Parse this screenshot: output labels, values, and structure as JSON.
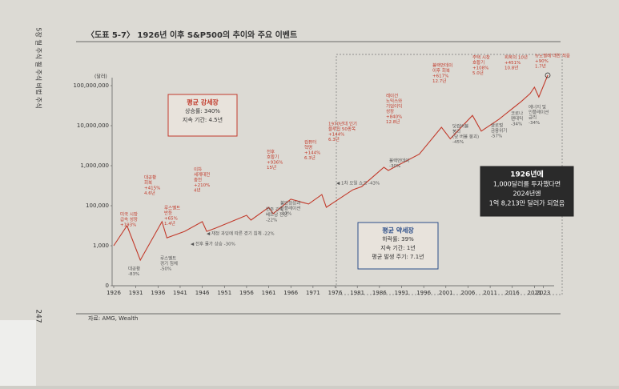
{
  "chart_data": {
    "type": "line",
    "title": "〈도표 5-7〉 1926년 이후 S&P500의 추이와 주요 이벤트",
    "y_label": "(달러)",
    "source": "자료: AMG, Wealth",
    "page_number": "247",
    "running_head": "5장 월 주식 될 주식 비법 주식",
    "yscale": "log",
    "ylim": [
      0,
      100000000
    ],
    "yticks": [
      0,
      {
        "value": 1000,
        "label": "1,000"
      },
      {
        "value": 100000,
        "label": "100,000"
      },
      {
        "value": 1000000,
        "label": "1,000,000"
      },
      {
        "value": 10000000,
        "label": "10,000,000"
      },
      {
        "value": 100000000,
        "label": "100,000,000"
      }
    ],
    "xlim": [
      1926,
      2024
    ],
    "xticks": [
      1926,
      1931,
      1936,
      1941,
      1946,
      1951,
      1956,
      1961,
      1966,
      1971,
      1976,
      1981,
      1986,
      1991,
      1996,
      2001,
      2006,
      2011,
      2016,
      2021,
      2023
    ],
    "series": [
      {
        "name": "S&P500",
        "color": "#c23a2b",
        "x": [
          1926,
          1929,
          1932,
          1936.9,
          1938,
          1942,
          1946,
          1947,
          1949,
          1956,
          1957,
          1961,
          1962,
          1966,
          1970,
          1973,
          1974,
          1980,
          1982,
          1987,
          1988,
          1990,
          1995,
          2000,
          2002,
          2007,
          2009,
          2013,
          2018,
          2020,
          2021,
          2022,
          2024
        ],
        "values": [
          1000,
          10000,
          640,
          16000,
          2500,
          5200,
          16000,
          5200,
          7600,
          33000,
          19000,
          83000,
          40000,
          145000,
          110000,
          190000,
          83000,
          250000,
          300000,
          910000,
          760000,
          1000000,
          1940000,
          9100000,
          4700000,
          18000000,
          7300000,
          14500000,
          40000000,
          63000000,
          91000000,
          52000000,
          182130000
        ]
      }
    ],
    "bull_box": [
      "평균 강세장",
      "상승률: 340%",
      "지속 기간: 4.5년"
    ],
    "bear_box": [
      "평균 약세장",
      "하락률: 39%",
      "지속 기간: 1년",
      "평균 발생 주기: 7.1년"
    ],
    "callout": [
      "1926년에",
      "1,000달러를 투자했다면",
      "2024년엔",
      "1억 8,213만 달러가 되었음"
    ],
    "annotations": [
      [
        "미국 시장",
        "급속 성장",
        "+193%"
      ],
      [
        "대공황",
        "-83%"
      ],
      [
        "대공황",
        "회복",
        "+415%",
        "4.6년"
      ],
      [
        "루스벨트",
        "경기 침체",
        "-50%"
      ],
      [
        "루스벨트",
        "반등",
        "+65%",
        "1.4년"
      ],
      [
        "이차",
        "세계대전",
        "종전",
        "+210%",
        "4년"
      ],
      [
        "◀ 재정 과잉에 따른 경기 침체 -22%"
      ],
      [
        "◀ 전후 물가 상승 -30%"
      ],
      [
        "전후",
        "호황기",
        "+936%",
        "15년"
      ],
      [
        "연준 긴축",
        "베트남 전쟁",
        "-22%"
      ],
      [
        "컴퓨터",
        "혁명",
        "+144%",
        "6.3년"
      ],
      [
        "불안정성과",
        "인플레이션",
        "-17%"
      ],
      [
        "1970년대 인기",
        "블루칩 50종목",
        "+144%",
        "6.3년"
      ],
      [
        "◀ 1차 오일 쇼크 -43%"
      ],
      [
        "레이건",
        "노믹스와",
        "기업이익",
        "성장",
        "+840%",
        "12.8년"
      ],
      [
        "블랙먼데이",
        "-30%"
      ],
      [
        "블랙먼데이",
        "이후 회복",
        "+617%",
        "12.7년"
      ],
      [
        "닷컴버블",
        "붕괴",
        "(닷 버블 붕괴)",
        "-45%"
      ],
      [
        "주택 시장",
        "호황기",
        "+108%",
        "5.0년"
      ],
      [
        "글로벌",
        "금융위기",
        "-57%"
      ],
      [
        "회복의 10년",
        "+451%",
        "10.8년"
      ],
      [
        "코로나",
        "팬데믹",
        "-34%"
      ],
      [
        "뉴노멀에 대한 적응",
        "+90%",
        "1.7년"
      ],
      [
        "에너지 및",
        "인플레이션",
        "금리",
        "-34%"
      ]
    ]
  }
}
